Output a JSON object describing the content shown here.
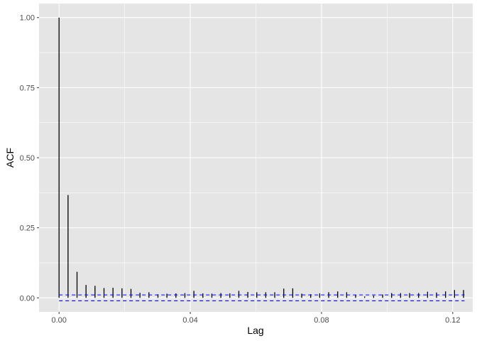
{
  "chart_data": {
    "type": "bar",
    "xlabel": "Lag",
    "ylabel": "ACF",
    "xlim": [
      -0.0061,
      0.1261
    ],
    "ylim": [
      -0.05,
      1.05
    ],
    "x_ticks": [
      0.0,
      0.04,
      0.08,
      0.12
    ],
    "x_tick_labels": [
      "0.00",
      "0.04",
      "0.08",
      "0.12"
    ],
    "y_ticks": [
      0.0,
      0.25,
      0.5,
      0.75,
      1.0
    ],
    "y_tick_labels": [
      "0.00",
      "0.25",
      "0.50",
      "0.75",
      "1.00"
    ],
    "grid": true,
    "series": [
      {
        "lag": [
          0.0,
          0.00274,
          0.00548,
          0.00822,
          0.01096,
          0.0137,
          0.01644,
          0.01918,
          0.02192,
          0.02466,
          0.0274,
          0.03014,
          0.03288,
          0.03562,
          0.03836,
          0.0411,
          0.04384,
          0.04658,
          0.04932,
          0.05206,
          0.0548,
          0.05753,
          0.06027,
          0.06301,
          0.06575,
          0.06849,
          0.07123,
          0.07397,
          0.07671,
          0.07945,
          0.08219,
          0.08493,
          0.08767,
          0.09041,
          0.09315,
          0.09589,
          0.09863,
          0.10137,
          0.10411,
          0.10685,
          0.10959,
          0.11233,
          0.11507,
          0.11781,
          0.12055,
          0.12329
        ],
        "acf": [
          1.0,
          0.367,
          0.093,
          0.046,
          0.043,
          0.035,
          0.036,
          0.034,
          0.032,
          0.018,
          0.02,
          0.013,
          0.015,
          0.016,
          0.017,
          0.025,
          0.016,
          0.015,
          0.017,
          0.016,
          0.025,
          0.021,
          0.02,
          0.02,
          0.02,
          0.033,
          0.034,
          0.015,
          0.013,
          0.016,
          0.02,
          0.023,
          0.02,
          0.01,
          0.005,
          0.008,
          0.012,
          0.017,
          0.017,
          0.017,
          0.017,
          0.022,
          0.019,
          0.023,
          0.028,
          0.028
        ]
      }
    ],
    "confidence_band": [
      -0.0105,
      0.0105
    ],
    "colors": {
      "panel": "#e5e5e5",
      "grid": "#ffffff",
      "bars": "#000000",
      "band": "#0000ff"
    }
  }
}
